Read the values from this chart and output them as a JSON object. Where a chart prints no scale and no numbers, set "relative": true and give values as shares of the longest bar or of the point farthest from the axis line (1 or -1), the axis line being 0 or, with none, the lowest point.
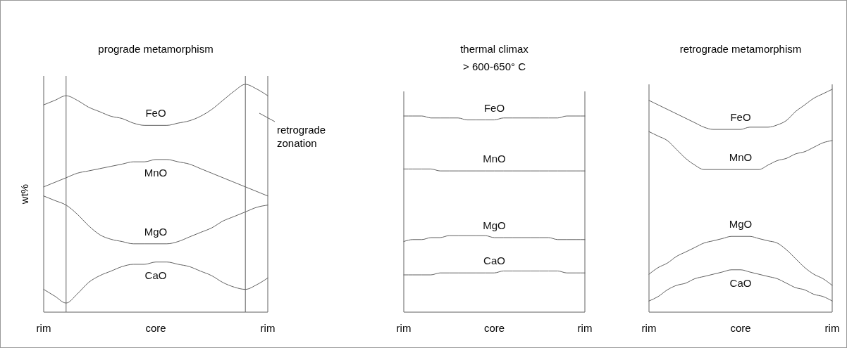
{
  "chart_data": [
    {
      "type": "line",
      "title": "prograde metamorphism",
      "ylabel": "wt%",
      "relative": true,
      "categories": [
        "rim",
        null,
        null,
        null,
        null,
        null,
        null,
        null,
        null,
        null,
        "core",
        null,
        null,
        null,
        null,
        null,
        null,
        null,
        null,
        null,
        "rim"
      ],
      "series": [
        {
          "name": "FeO",
          "color": "#606060",
          "values": [
            0.91,
            0.93,
            0.95,
            0.93,
            0.9,
            0.88,
            0.86,
            0.85,
            0.83,
            0.82,
            0.82,
            0.82,
            0.83,
            0.84,
            0.86,
            0.89,
            0.93,
            0.97,
            1.0,
            0.98,
            0.95
          ]
        },
        {
          "name": "MnO",
          "color": "#606060",
          "values": [
            0.55,
            0.57,
            0.59,
            0.61,
            0.62,
            0.63,
            0.64,
            0.65,
            0.66,
            0.66,
            0.67,
            0.67,
            0.66,
            0.65,
            0.63,
            0.61,
            0.59,
            0.57,
            0.55,
            0.53,
            0.51
          ]
        },
        {
          "name": "MgO",
          "color": "#606060",
          "values": [
            0.51,
            0.49,
            0.47,
            0.43,
            0.38,
            0.34,
            0.32,
            0.31,
            0.3,
            0.3,
            0.3,
            0.3,
            0.31,
            0.33,
            0.35,
            0.37,
            0.4,
            0.42,
            0.44,
            0.46,
            0.47
          ]
        },
        {
          "name": "CaO",
          "color": "#606060",
          "values": [
            0.1,
            0.07,
            0.04,
            0.08,
            0.13,
            0.16,
            0.18,
            0.2,
            0.21,
            0.21,
            0.22,
            0.22,
            0.21,
            0.2,
            0.18,
            0.16,
            0.13,
            0.11,
            0.1,
            0.12,
            0.15
          ]
        }
      ],
      "annotations": [
        "retrograde zonation"
      ]
    },
    {
      "type": "line",
      "title": "thermal climax",
      "subtitle": "> 600-650° C",
      "relative": true,
      "categories": [
        "rim",
        null,
        null,
        null,
        null,
        null,
        null,
        null,
        null,
        null,
        "core",
        null,
        null,
        null,
        null,
        null,
        null,
        null,
        null,
        null,
        "rim"
      ],
      "series": [
        {
          "name": "FeO",
          "color": "#606060",
          "values": [
            1.0,
            1.0,
            1.0,
            0.99,
            0.99,
            0.99,
            0.99,
            0.98,
            0.98,
            0.98,
            0.98,
            0.99,
            0.99,
            0.99,
            0.99,
            0.99,
            0.99,
            0.99,
            1.0,
            1.0,
            1.0
          ]
        },
        {
          "name": "MnO",
          "color": "#606060",
          "values": [
            0.73,
            0.73,
            0.73,
            0.73,
            0.72,
            0.72,
            0.72,
            0.72,
            0.72,
            0.72,
            0.72,
            0.72,
            0.72,
            0.72,
            0.72,
            0.72,
            0.72,
            0.72,
            0.72,
            0.72,
            0.72
          ]
        },
        {
          "name": "MgO",
          "color": "#606060",
          "values": [
            0.36,
            0.37,
            0.37,
            0.38,
            0.38,
            0.39,
            0.39,
            0.39,
            0.39,
            0.39,
            0.38,
            0.38,
            0.38,
            0.38,
            0.38,
            0.38,
            0.38,
            0.37,
            0.37,
            0.37,
            0.37
          ]
        },
        {
          "name": "CaO",
          "color": "#606060",
          "values": [
            0.19,
            0.19,
            0.19,
            0.19,
            0.2,
            0.2,
            0.2,
            0.2,
            0.2,
            0.2,
            0.2,
            0.21,
            0.21,
            0.21,
            0.21,
            0.21,
            0.21,
            0.21,
            0.2,
            0.2,
            0.2
          ]
        }
      ]
    },
    {
      "type": "line",
      "title": "retrograde metamorphism",
      "relative": true,
      "categories": [
        "rim",
        null,
        null,
        null,
        null,
        null,
        null,
        null,
        null,
        null,
        "core",
        null,
        null,
        null,
        null,
        null,
        null,
        null,
        null,
        null,
        "rim"
      ],
      "series": [
        {
          "name": "FeO",
          "color": "#606060",
          "values": [
            0.95,
            0.93,
            0.91,
            0.89,
            0.87,
            0.85,
            0.83,
            0.82,
            0.82,
            0.82,
            0.82,
            0.83,
            0.83,
            0.83,
            0.84,
            0.86,
            0.9,
            0.93,
            0.96,
            0.98,
            1.0
          ]
        },
        {
          "name": "MnO",
          "color": "#606060",
          "values": [
            0.81,
            0.79,
            0.77,
            0.73,
            0.69,
            0.66,
            0.64,
            0.64,
            0.64,
            0.64,
            0.64,
            0.64,
            0.64,
            0.66,
            0.68,
            0.69,
            0.71,
            0.72,
            0.74,
            0.76,
            0.77
          ]
        },
        {
          "name": "MgO",
          "color": "#606060",
          "values": [
            0.17,
            0.2,
            0.22,
            0.25,
            0.27,
            0.29,
            0.31,
            0.32,
            0.33,
            0.34,
            0.34,
            0.34,
            0.33,
            0.32,
            0.31,
            0.28,
            0.24,
            0.2,
            0.17,
            0.15,
            0.12
          ]
        },
        {
          "name": "CaO",
          "color": "#606060",
          "values": [
            0.05,
            0.07,
            0.1,
            0.12,
            0.13,
            0.15,
            0.16,
            0.17,
            0.18,
            0.19,
            0.19,
            0.18,
            0.17,
            0.16,
            0.15,
            0.13,
            0.11,
            0.1,
            0.08,
            0.07,
            0.05
          ]
        }
      ]
    }
  ]
}
